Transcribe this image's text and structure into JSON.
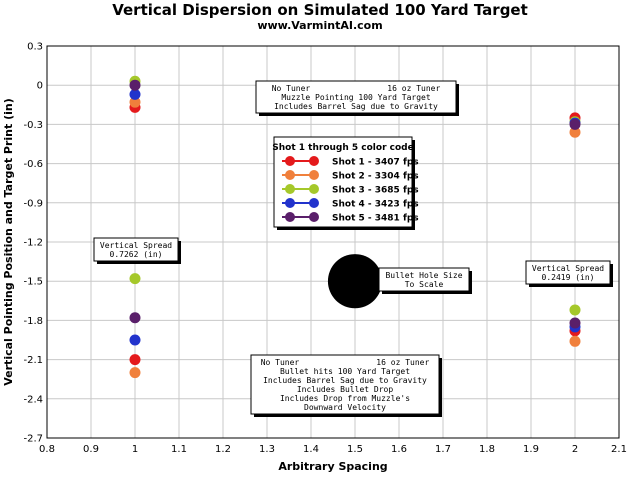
{
  "chart_data": {
    "type": "scatter",
    "title": "Vertical Dispersion on Simulated 100 Yard Target",
    "subtitle": "www.VarmintAI.com",
    "xlabel": "Arbitrary Spacing",
    "ylabel": "Vertical Pointing Position and Target Print (in)",
    "xlim": [
      0.8,
      2.1
    ],
    "ylim": [
      -2.7,
      0.3
    ],
    "xticks": [
      "0.8",
      "0.9",
      "1",
      "1.1",
      "1.2",
      "1.3",
      "1.4",
      "1.5",
      "1.6",
      "1.7",
      "1.8",
      "1.9",
      "2",
      "2.1"
    ],
    "yticks": [
      "0.3",
      "0",
      "-0.3",
      "-0.6",
      "-0.9",
      "-1.2",
      "-1.5",
      "-1.8",
      "-2.1",
      "-2.4",
      "-2.7"
    ],
    "grid": true,
    "legend": {
      "title": "Shot 1 through 5 color code",
      "placement": "center"
    },
    "series": [
      {
        "name": "Shot 1 - 3407 fps",
        "color": "#e41a1c",
        "x": [
          1,
          2,
          1,
          2
        ],
        "y": [
          -0.17,
          -0.25,
          -2.1,
          -1.88
        ]
      },
      {
        "name": "Shot 2 - 3304 fps",
        "color": "#f0803c",
        "x": [
          1,
          2,
          1,
          2
        ],
        "y": [
          -0.13,
          -0.36,
          -2.2,
          -1.96
        ]
      },
      {
        "name": "Shot 3 - 3685 fps",
        "color": "#a5c82a",
        "x": [
          1,
          2,
          1,
          2
        ],
        "y": [
          0.03,
          -0.28,
          -1.48,
          -1.72
        ]
      },
      {
        "name": "Shot 4 - 3423 fps",
        "color": "#2233cc",
        "x": [
          1,
          2,
          1,
          2
        ],
        "y": [
          -0.07,
          -0.29,
          -1.95,
          -1.85
        ]
      },
      {
        "name": "Shot 5 - 3481 fps",
        "color": "#5a1f6a",
        "x": [
          1,
          2,
          1,
          2
        ],
        "y": [
          0.0,
          -0.3,
          -1.78,
          -1.82
        ]
      }
    ],
    "bullet_hole": {
      "x": 1.5,
      "y": -1.5,
      "color": "#000000"
    },
    "annotations": {
      "top_note": [
        "No Tuner                16 oz Tuner",
        "Muzzle Pointing 100 Yard Target",
        "Includes Barrel Sag due to Gravity"
      ],
      "bottom_note": [
        "No Tuner                16 oz Tuner",
        "Bullet hits 100 Yard Target",
        "Includes Barrel Sag due to Gravity",
        "Includes Bullet Drop",
        "Includes Drop from Muzzle's",
        "Downward Velocity"
      ],
      "left_spread": [
        "Vertical Spread",
        "0.7262 (in)"
      ],
      "right_spread": [
        "Vertical Spread",
        "0.2419 (in)"
      ],
      "bullet_label": [
        "Bullet Hole Size",
        "To Scale"
      ]
    }
  }
}
